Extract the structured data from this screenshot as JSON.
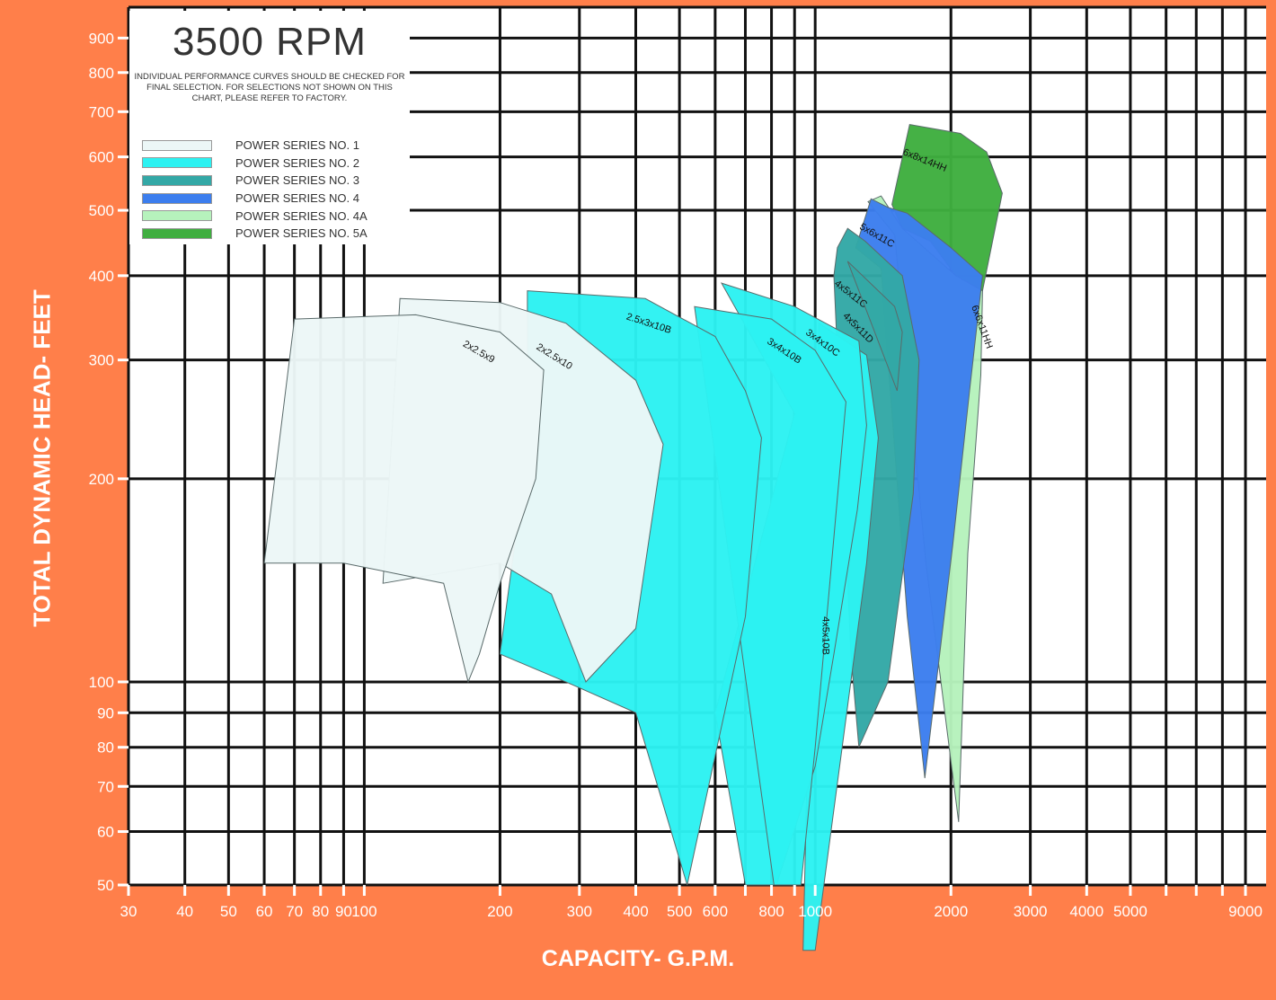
{
  "legend": {
    "title": "3500 RPM",
    "note": "INDIVIDUAL PERFORMANCE CURVES SHOULD BE CHECKED FOR FINAL SELECTION. FOR SELECTIONS NOT SHOWN ON THIS CHART, PLEASE REFER TO FACTORY.",
    "items": [
      {
        "label": "POWER SERIES NO. 1",
        "color": "#ECF7F7"
      },
      {
        "label": "POWER SERIES NO. 2",
        "color": "#2CF2F2"
      },
      {
        "label": "POWER SERIES NO. 3",
        "color": "#33A8A6"
      },
      {
        "label": "POWER SERIES NO. 4",
        "color": "#3C7EEE"
      },
      {
        "label": "POWER SERIES NO. 4A",
        "color": "#B6F2BC"
      },
      {
        "label": "POWER SERIES NO. 5A",
        "color": "#3FAE3F"
      }
    ]
  },
  "chart_data": {
    "type": "area",
    "title": "3500 RPM",
    "xlabel": "CAPACITY- G.P.M.",
    "ylabel": "TOTAL DYNAMIC HEAD- FEET",
    "xscale": "log",
    "yscale": "log",
    "xlim": [
      30,
      10000
    ],
    "ylim": [
      50,
      1000
    ],
    "grid": true,
    "legend_position": "top-left",
    "xticks": [
      30,
      40,
      50,
      60,
      70,
      80,
      90,
      100,
      200,
      300,
      400,
      500,
      600,
      800,
      1000,
      2000,
      3000,
      4000,
      5000,
      9000
    ],
    "xtick_labels": [
      "30",
      "40",
      "50",
      "60",
      "70",
      "80",
      "90",
      "100",
      "200",
      "300",
      "400",
      "500",
      "600",
      "800",
      "1000",
      "2000",
      "3000",
      "4000",
      "5000",
      "9000"
    ],
    "yticks": [
      50,
      60,
      70,
      80,
      90,
      100,
      200,
      300,
      400,
      500,
      600,
      700,
      800,
      900
    ],
    "ytick_labels": [
      "50",
      "60",
      "70",
      "80",
      "90",
      "100",
      "200",
      "300",
      "400",
      "500",
      "600",
      "700",
      "800",
      "900"
    ],
    "series": [
      {
        "name": "6x6x11HH",
        "series": 5,
        "color": "#B6F2BC",
        "outline": [
          [
            1310,
            515
          ],
          [
            1400,
            525
          ],
          [
            1560,
            470
          ],
          [
            2050,
            400
          ],
          [
            2350,
            380
          ],
          [
            2330,
            285
          ],
          [
            2180,
            155
          ],
          [
            2080,
            62
          ],
          [
            1900,
            100
          ],
          [
            1760,
            150
          ],
          [
            1500,
            460
          ]
        ]
      },
      {
        "name": "6x8x14HH",
        "series": 6,
        "color": "#3FAE3F",
        "outline": [
          [
            1620,
            670
          ],
          [
            2100,
            650
          ],
          [
            2400,
            610
          ],
          [
            2600,
            530
          ],
          [
            2350,
            380
          ],
          [
            2050,
            400
          ],
          [
            1800,
            450
          ],
          [
            1560,
            470
          ],
          [
            1480,
            510
          ]
        ]
      },
      {
        "name": "5x6x11C",
        "series": 4,
        "color": "#3C7EEE",
        "outline": [
          [
            1330,
            520
          ],
          [
            1450,
            505
          ],
          [
            1600,
            495
          ],
          [
            2000,
            440
          ],
          [
            2350,
            400
          ],
          [
            2200,
            270
          ],
          [
            2020,
            160
          ],
          [
            1750,
            72
          ],
          [
            1600,
            125
          ],
          [
            1400,
            410
          ],
          [
            1230,
            440
          ]
        ]
      },
      {
        "name": "4x5x11C",
        "series": 3,
        "color": "#33A8A6",
        "outline": [
          [
            1180,
            470
          ],
          [
            1290,
            450
          ],
          [
            1560,
            400
          ],
          [
            1700,
            300
          ],
          [
            1650,
            190
          ],
          [
            1450,
            100
          ],
          [
            1250,
            80
          ],
          [
            1200,
            110
          ],
          [
            1100,
            400
          ],
          [
            1120,
            440
          ]
        ]
      },
      {
        "name": "4x5x11D",
        "series": 3,
        "color": "#33A8A6",
        "outline": [
          [
            1180,
            420
          ],
          [
            1500,
            360
          ],
          [
            1560,
            330
          ],
          [
            1520,
            270
          ]
        ]
      },
      {
        "name": "4x5x10B",
        "series": 2,
        "color": "#2CF2F2",
        "outline": [
          [
            1020,
            340
          ],
          [
            1300,
            305
          ],
          [
            1380,
            230
          ],
          [
            1300,
            150
          ],
          [
            1000,
            40
          ],
          [
            940,
            40
          ],
          [
            1000,
            250
          ]
        ]
      },
      {
        "name": "3x4x10C",
        "series": 2,
        "color": "#2CF2F2",
        "outline": [
          [
            620,
            390
          ],
          [
            900,
            360
          ],
          [
            1250,
            320
          ],
          [
            1300,
            240
          ],
          [
            1240,
            180
          ],
          [
            1100,
            110
          ],
          [
            1000,
            75
          ],
          [
            820,
            50
          ],
          [
            700,
            50
          ],
          [
            600,
            90
          ],
          [
            900,
            250
          ]
        ]
      },
      {
        "name": "3x4x10B",
        "series": 2,
        "color": "#2CF2F2",
        "outline": [
          [
            540,
            360
          ],
          [
            800,
            345
          ],
          [
            1000,
            310
          ],
          [
            1170,
            260
          ],
          [
            1000,
            80
          ],
          [
            930,
            50
          ],
          [
            810,
            50
          ]
        ]
      },
      {
        "name": "2.5x3x10B",
        "series": 2,
        "color": "#2CF2F2",
        "outline": [
          [
            230,
            380
          ],
          [
            420,
            370
          ],
          [
            600,
            325
          ],
          [
            700,
            270
          ],
          [
            760,
            230
          ],
          [
            700,
            125
          ],
          [
            580,
            70
          ],
          [
            520,
            50
          ],
          [
            400,
            90
          ],
          [
            280,
            100
          ],
          [
            200,
            110
          ],
          [
            230,
            220
          ]
        ]
      },
      {
        "name": "2x2.5x10",
        "series": 1,
        "color": "#ECF7F7",
        "outline": [
          [
            120,
            370
          ],
          [
            200,
            365
          ],
          [
            280,
            340
          ],
          [
            400,
            280
          ],
          [
            460,
            225
          ],
          [
            400,
            120
          ],
          [
            310,
            100
          ],
          [
            260,
            135
          ],
          [
            200,
            150
          ],
          [
            110,
            140
          ]
        ]
      },
      {
        "name": "2x2.5x9",
        "series": 1,
        "color": "#ECF7F7",
        "outline": [
          [
            70,
            345
          ],
          [
            130,
            350
          ],
          [
            200,
            330
          ],
          [
            250,
            290
          ],
          [
            240,
            200
          ],
          [
            200,
            140
          ],
          [
            180,
            110
          ],
          [
            170,
            100
          ],
          [
            150,
            140
          ],
          [
            90,
            150
          ],
          [
            60,
            150
          ]
        ]
      }
    ]
  }
}
